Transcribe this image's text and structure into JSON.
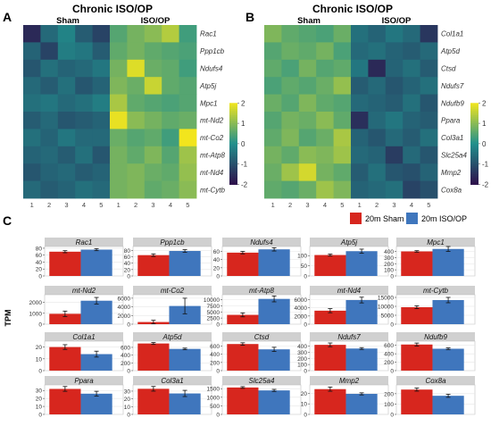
{
  "panels": {
    "A": {
      "letter": "A",
      "title": "Chronic ISO/OP",
      "group_sham": "Sham",
      "group_iso": "ISO/OP"
    },
    "B": {
      "letter": "B",
      "title": "Chronic ISO/OP",
      "group_sham": "Sham",
      "group_iso": "ISO/OP"
    },
    "C": {
      "letter": "C",
      "y_axis_label": "TPM"
    }
  },
  "colors": {
    "sham": "#d7261e",
    "iso": "#3f76bd",
    "heat_low": "#2d0f4a",
    "heat_mid": "#21908d",
    "heat_high": "#f2e51d",
    "strip": "#d0d0d0"
  },
  "legend": {
    "sham": "20m Sham",
    "iso": "20m ISO/OP"
  },
  "chart_data": [
    {
      "type": "heatmap",
      "panel": "A",
      "title": "Chronic ISO/OP",
      "columns": [
        "1",
        "2",
        "3",
        "4",
        "5",
        "1",
        "2",
        "3",
        "4",
        "5"
      ],
      "rows": [
        "Rac1",
        "Ppp1cb",
        "Ndufs4",
        "Atp5j",
        "Mpc1",
        "mt-Nd2",
        "mt-Co2",
        "mt-Atp8",
        "mt-Nd4",
        "mt-Cytb"
      ],
      "values": [
        [
          -1.6,
          -0.6,
          -0.2,
          -0.8,
          -1.2,
          0.5,
          0.8,
          1.0,
          1.4,
          0.3
        ],
        [
          -0.7,
          -1.2,
          -0.3,
          -0.4,
          -0.8,
          0.6,
          0.8,
          0.6,
          0.5,
          0.4
        ],
        [
          -0.9,
          -0.5,
          -0.7,
          -0.6,
          -0.4,
          0.8,
          1.8,
          0.7,
          0.6,
          0.3
        ],
        [
          -0.6,
          -0.8,
          -0.5,
          -0.9,
          -0.7,
          0.9,
          0.7,
          1.6,
          0.6,
          0.5
        ],
        [
          -0.5,
          -0.4,
          -0.6,
          -0.5,
          -0.3,
          1.3,
          0.6,
          0.5,
          0.4,
          0.5
        ],
        [
          -0.8,
          -0.6,
          -0.9,
          -0.8,
          -0.7,
          1.9,
          1.0,
          0.8,
          0.6,
          0.7
        ],
        [
          -0.5,
          -0.7,
          -0.4,
          -0.6,
          -0.6,
          0.7,
          0.5,
          0.6,
          0.3,
          2.0
        ],
        [
          -0.7,
          -0.6,
          -0.8,
          -0.5,
          -0.9,
          0.8,
          0.6,
          0.9,
          0.5,
          1.2
        ],
        [
          -0.9,
          -0.7,
          -0.6,
          -0.8,
          -0.7,
          0.8,
          0.9,
          0.7,
          0.6,
          1.1
        ],
        [
          -0.6,
          -0.8,
          -0.7,
          -0.5,
          -0.6,
          0.8,
          0.9,
          0.6,
          0.7,
          1.0
        ]
      ],
      "scale_ticks": [
        2,
        1,
        0,
        -1,
        -2
      ],
      "range": [
        -2,
        2
      ]
    },
    {
      "type": "heatmap",
      "panel": "B",
      "title": "Chronic ISO/OP",
      "columns": [
        "1",
        "2",
        "3",
        "4",
        "5",
        "1",
        "2",
        "3",
        "4",
        "5"
      ],
      "rows": [
        "Col1a1",
        "Atp5d",
        "Ctsd",
        "Ndufs7",
        "Ndufb9",
        "Ppara",
        "Col3a1",
        "Slc25a4",
        "Mmp2",
        "Cox8a"
      ],
      "values": [
        [
          0.9,
          0.6,
          0.5,
          0.4,
          0.7,
          -0.5,
          -0.7,
          -0.4,
          -0.6,
          -1.4
        ],
        [
          0.5,
          0.7,
          0.6,
          0.8,
          0.4,
          -0.6,
          -0.5,
          -0.7,
          -0.8,
          -0.6
        ],
        [
          0.6,
          0.4,
          0.8,
          0.5,
          0.6,
          -0.4,
          -1.6,
          -0.7,
          -0.5,
          -0.8
        ],
        [
          0.4,
          0.6,
          0.5,
          0.7,
          1.1,
          -0.8,
          -0.6,
          -0.9,
          -0.7,
          -0.5
        ],
        [
          0.7,
          0.5,
          0.9,
          0.6,
          0.5,
          -0.6,
          -0.7,
          -0.8,
          -0.5,
          -0.9
        ],
        [
          0.5,
          0.8,
          0.7,
          1.0,
          0.6,
          -1.5,
          -0.6,
          -0.4,
          -0.7,
          -0.8
        ],
        [
          0.6,
          0.9,
          0.5,
          0.7,
          1.3,
          -0.7,
          -0.9,
          -0.6,
          -0.8,
          -0.5
        ],
        [
          0.8,
          0.6,
          1.0,
          0.9,
          1.2,
          -0.6,
          -0.7,
          -1.3,
          -0.6,
          -0.9
        ],
        [
          0.7,
          1.2,
          1.7,
          0.8,
          0.6,
          -0.8,
          -0.5,
          -0.9,
          -1.0,
          -0.7
        ],
        [
          0.6,
          0.5,
          0.7,
          1.2,
          0.9,
          -0.7,
          -0.6,
          -0.5,
          -1.2,
          -1.0
        ]
      ],
      "scale_ticks": [
        2,
        1,
        0,
        -1,
        -2
      ],
      "range": [
        -2,
        2
      ]
    },
    {
      "type": "bar",
      "panel": "C",
      "ylabel": "TPM",
      "series": [
        {
          "name": "20m Sham"
        },
        {
          "name": "20m ISO/OP"
        }
      ],
      "facets": [
        {
          "gene": "Rac1",
          "ticks": [
            0,
            20,
            40,
            60,
            80
          ],
          "ylim": [
            0,
            85
          ],
          "sham": 70,
          "iso": 76,
          "sham_err": 3,
          "iso_err": 3
        },
        {
          "gene": "Ppp1cb",
          "ticks": [
            0,
            20,
            40,
            60,
            80
          ],
          "ylim": [
            0,
            92
          ],
          "sham": 65,
          "iso": 78,
          "sham_err": 4,
          "iso_err": 4
        },
        {
          "gene": "Ndufs4",
          "ticks": [
            0,
            20,
            40,
            60
          ],
          "ylim": [
            0,
            72
          ],
          "sham": 57,
          "iso": 65,
          "sham_err": 3,
          "iso_err": 4
        },
        {
          "gene": "Atp5j",
          "ticks": [
            0,
            50,
            100
          ],
          "ylim": [
            0,
            145
          ],
          "sham": 103,
          "iso": 122,
          "sham_err": 5,
          "iso_err": 10
        },
        {
          "gene": "Mpc1",
          "ticks": [
            0,
            100,
            200,
            300,
            400
          ],
          "ylim": [
            0,
            480
          ],
          "sham": 400,
          "iso": 440,
          "sham_err": 12,
          "iso_err": 40
        },
        {
          "gene": "mt-Nd2",
          "ticks": [
            0,
            1000,
            2000
          ],
          "ylim": [
            0,
            2700
          ],
          "sham": 950,
          "iso": 2150,
          "sham_err": 250,
          "iso_err": 300
        },
        {
          "gene": "mt-Co2",
          "ticks": [
            0,
            2000,
            4000,
            6000
          ],
          "ylim": [
            0,
            6800
          ],
          "sham": 500,
          "iso": 4200,
          "sham_err": 400,
          "iso_err": 1800
        },
        {
          "gene": "mt-Atp8",
          "ticks": [
            0,
            2500,
            5000,
            7500,
            10000
          ],
          "ylim": [
            0,
            12000
          ],
          "sham": 3800,
          "iso": 10300,
          "sham_err": 800,
          "iso_err": 1200
        },
        {
          "gene": "mt-Nd4",
          "ticks": [
            0,
            2000,
            4000,
            6000
          ],
          "ylim": [
            0,
            7200
          ],
          "sham": 3300,
          "iso": 5900,
          "sham_err": 500,
          "iso_err": 700
        },
        {
          "gene": "mt-Cytb",
          "ticks": [
            0,
            5000,
            10000,
            15000
          ],
          "ylim": [
            0,
            16500
          ],
          "sham": 9500,
          "iso": 13500,
          "sham_err": 800,
          "iso_err": 1500
        },
        {
          "gene": "Col1a1",
          "ticks": [
            0,
            10,
            20
          ],
          "ylim": [
            0,
            25
          ],
          "sham": 20,
          "iso": 14,
          "sham_err": 2,
          "iso_err": 2.5
        },
        {
          "gene": "Atp5d",
          "ticks": [
            0,
            200,
            400,
            600
          ],
          "ylim": [
            0,
            760
          ],
          "sham": 700,
          "iso": 560,
          "sham_err": 25,
          "iso_err": 20
        },
        {
          "gene": "Ctsd",
          "ticks": [
            0,
            200,
            400,
            600
          ],
          "ylim": [
            0,
            720
          ],
          "sham": 650,
          "iso": 520,
          "sham_err": 30,
          "iso_err": 50
        },
        {
          "gene": "Ndufs7",
          "ticks": [
            0,
            100,
            200,
            300,
            400
          ],
          "ylim": [
            0,
            480
          ],
          "sham": 420,
          "iso": 360,
          "sham_err": 30,
          "iso_err": 15
        },
        {
          "gene": "Ndufb9",
          "ticks": [
            0,
            200,
            400,
            600
          ],
          "ylim": [
            0,
            700
          ],
          "sham": 620,
          "iso": 520,
          "sham_err": 35,
          "iso_err": 20
        },
        {
          "gene": "Ppara",
          "ticks": [
            0,
            10,
            20,
            30
          ],
          "ylim": [
            0,
            37
          ],
          "sham": 32,
          "iso": 26,
          "sham_err": 3,
          "iso_err": 3
        },
        {
          "gene": "Col3a1",
          "ticks": [
            0,
            10,
            20,
            30
          ],
          "ylim": [
            0,
            38
          ],
          "sham": 33,
          "iso": 27,
          "sham_err": 3,
          "iso_err": 4
        },
        {
          "gene": "Slc25a4",
          "ticks": [
            0,
            500,
            1000,
            1500
          ],
          "ylim": [
            0,
            1720
          ],
          "sham": 1570,
          "iso": 1400,
          "sham_err": 50,
          "iso_err": 60
        },
        {
          "gene": "Mmp2",
          "ticks": [
            0,
            10,
            20
          ],
          "ylim": [
            0,
            28
          ],
          "sham": 24,
          "iso": 19.5,
          "sham_err": 2,
          "iso_err": 1
        },
        {
          "gene": "Cox8a",
          "ticks": [
            0,
            100,
            200
          ],
          "ylim": [
            0,
            285
          ],
          "sham": 240,
          "iso": 180,
          "sham_err": 15,
          "iso_err": 15
        }
      ]
    }
  ]
}
